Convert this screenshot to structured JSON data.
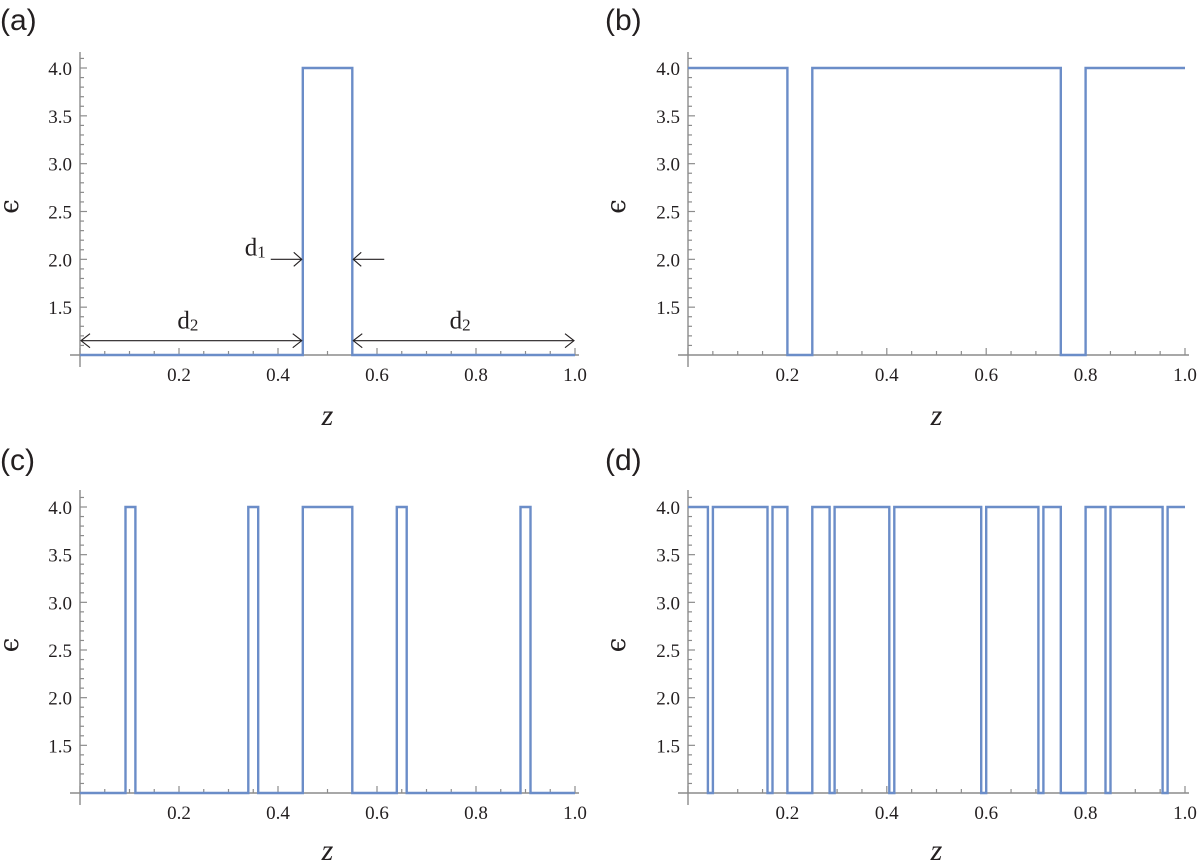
{
  "chart_data": [
    {
      "type": "line",
      "panel_label": "(a)",
      "xlabel": "z",
      "ylabel": "ϵ",
      "xlim": [
        0,
        1
      ],
      "ylim": [
        1,
        4.1
      ],
      "xticks": [
        0.2,
        0.4,
        0.6,
        0.8,
        1.0
      ],
      "xtick_labels": [
        "0.2",
        "0.4",
        "0.6",
        "0.8",
        "1.0"
      ],
      "yticks": [
        1.5,
        2.0,
        2.5,
        3.0,
        3.5,
        4.0
      ],
      "ytick_labels": [
        "1.5",
        "2.0",
        "2.5",
        "3.0",
        "3.5",
        "4.0"
      ],
      "series": [
        {
          "x": [
            0,
            0.45,
            0.45,
            0.55,
            0.55,
            1.0
          ],
          "y": [
            1,
            1,
            4,
            4,
            1,
            1
          ]
        }
      ],
      "annotations": {
        "d1": {
          "label": "d",
          "sub": "1"
        },
        "d2_left": {
          "label": "d",
          "sub": "2"
        },
        "d2_right": {
          "label": "d",
          "sub": "2"
        }
      },
      "grid": false
    },
    {
      "type": "line",
      "panel_label": "(b)",
      "xlabel": "z",
      "ylabel": "ϵ",
      "xlim": [
        0,
        1
      ],
      "ylim": [
        1,
        4.1
      ],
      "xticks": [
        0.2,
        0.4,
        0.6,
        0.8,
        1.0
      ],
      "xtick_labels": [
        "0.2",
        "0.4",
        "0.6",
        "0.8",
        "1.0"
      ],
      "yticks": [
        1.5,
        2.0,
        2.5,
        3.0,
        3.5,
        4.0
      ],
      "ytick_labels": [
        "1.5",
        "2.0",
        "2.5",
        "3.0",
        "3.5",
        "4.0"
      ],
      "series": [
        {
          "x": [
            0,
            0.2,
            0.2,
            0.25,
            0.25,
            0.75,
            0.75,
            0.8,
            0.8,
            1.0
          ],
          "y": [
            4,
            4,
            1,
            1,
            4,
            4,
            1,
            1,
            4,
            4
          ]
        }
      ],
      "grid": false
    },
    {
      "type": "line",
      "panel_label": "(c)",
      "xlabel": "z",
      "ylabel": "ϵ",
      "xlim": [
        0,
        1
      ],
      "ylim": [
        1,
        4.1
      ],
      "xticks": [
        0.2,
        0.4,
        0.6,
        0.8,
        1.0
      ],
      "xtick_labels": [
        "0.2",
        "0.4",
        "0.6",
        "0.8",
        "1.0"
      ],
      "yticks": [
        1.5,
        2.0,
        2.5,
        3.0,
        3.5,
        4.0
      ],
      "ytick_labels": [
        "1.5",
        "2.0",
        "2.5",
        "3.0",
        "3.5",
        "4.0"
      ],
      "series": [
        {
          "x": [
            0,
            0.092,
            0.092,
            0.112,
            0.112,
            0.34,
            0.34,
            0.36,
            0.36,
            0.45,
            0.45,
            0.55,
            0.55,
            0.64,
            0.64,
            0.66,
            0.66,
            0.89,
            0.89,
            0.91,
            0.91,
            1.0
          ],
          "y": [
            1,
            1,
            4,
            4,
            1,
            1,
            4,
            4,
            1,
            1,
            4,
            4,
            1,
            1,
            4,
            4,
            1,
            1,
            4,
            4,
            1,
            1
          ]
        }
      ],
      "grid": false
    },
    {
      "type": "line",
      "panel_label": "(d)",
      "xlabel": "z",
      "ylabel": "ϵ",
      "xlim": [
        0,
        1
      ],
      "ylim": [
        1,
        4.1
      ],
      "xticks": [
        0.2,
        0.4,
        0.6,
        0.8,
        1.0
      ],
      "xtick_labels": [
        "0.2",
        "0.4",
        "0.6",
        "0.8",
        "1.0"
      ],
      "yticks": [
        1.5,
        2.0,
        2.5,
        3.0,
        3.5,
        4.0
      ],
      "ytick_labels": [
        "1.5",
        "2.0",
        "2.5",
        "3.0",
        "3.5",
        "4.0"
      ],
      "series": [
        {
          "x": [
            0,
            0.04,
            0.04,
            0.05,
            0.05,
            0.16,
            0.16,
            0.17,
            0.17,
            0.2,
            0.2,
            0.25,
            0.25,
            0.285,
            0.285,
            0.295,
            0.295,
            0.405,
            0.405,
            0.415,
            0.415,
            0.59,
            0.59,
            0.6,
            0.6,
            0.705,
            0.705,
            0.715,
            0.715,
            0.75,
            0.75,
            0.8,
            0.8,
            0.84,
            0.84,
            0.85,
            0.85,
            0.955,
            0.955,
            0.965,
            0.965,
            1.0
          ],
          "y": [
            4,
            4,
            1,
            1,
            4,
            4,
            1,
            1,
            4,
            4,
            1,
            1,
            4,
            4,
            1,
            1,
            4,
            4,
            1,
            1,
            4,
            4,
            1,
            1,
            4,
            4,
            1,
            1,
            4,
            4,
            1,
            1,
            4,
            4,
            1,
            1,
            4,
            4,
            1,
            1,
            4,
            4
          ]
        }
      ],
      "grid": false
    }
  ],
  "colors": {
    "series": "#6b8dc8",
    "axis": "#8c8c8c",
    "text": "#231f20"
  }
}
